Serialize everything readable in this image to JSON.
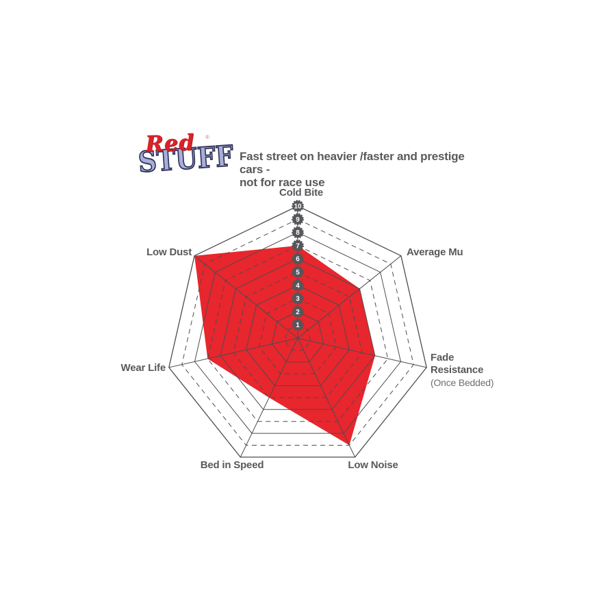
{
  "logo": {
    "word1": "Red",
    "word2": "STUFF",
    "registered": "®"
  },
  "header": {
    "line1": "Fast street on heavier /faster and prestige cars -",
    "line2": "not for race use"
  },
  "chart_data": {
    "type": "radar",
    "title": "Fast street on heavier /faster and prestige cars - not for race use",
    "axes": [
      "Cold Bite",
      "Average Mu",
      "Fade Resistance",
      "Low Noise",
      "Bed in Speed",
      "Wear Life",
      "Low Dust"
    ],
    "axis_note": "(Once Bedded)",
    "series": [
      {
        "name": "Redstuff",
        "values": [
          7,
          6,
          6,
          9,
          5,
          7,
          10
        ]
      }
    ],
    "scale": {
      "min": 1,
      "max": 10,
      "ticks": [
        "1",
        "2",
        "3",
        "4",
        "5",
        "6",
        "7",
        "8",
        "9",
        "10"
      ]
    },
    "layout": {
      "start_axis": "top",
      "direction": "clockwise",
      "grid_rings": 10,
      "solid_rings": "even",
      "dashed_rings": "odd",
      "legend": false
    },
    "colors": {
      "fill": "#e8262d",
      "grid": "#4c4c4f",
      "badge": "#55565a",
      "label": "#58595b",
      "badge_text": "#ffffff"
    }
  }
}
